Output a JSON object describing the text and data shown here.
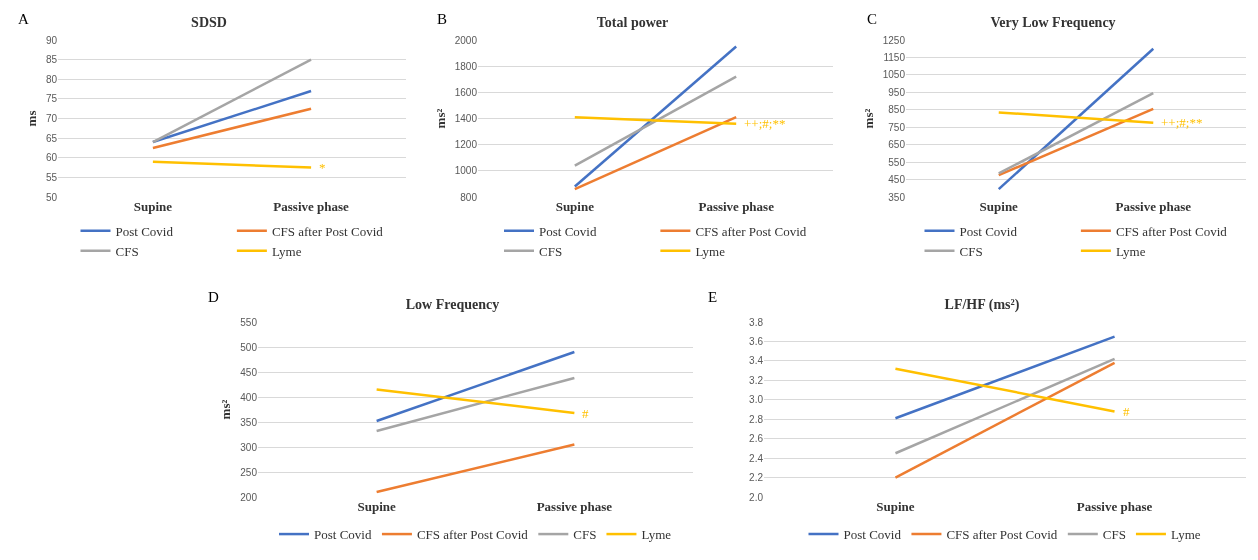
{
  "chart_data": [
    {
      "type": "line",
      "title": "SDSD",
      "ylabel": "ms",
      "categories": [
        "Supine",
        "Passive phase"
      ],
      "ylim": [
        50,
        90
      ],
      "yticks": [
        50,
        55,
        60,
        65,
        70,
        75,
        80,
        85,
        90
      ],
      "grid": "y",
      "legend": "bottom",
      "marker": "none",
      "line_style": "solid",
      "annotations": [
        "A",
        {
          "text": "*",
          "x": "Passive phase",
          "y": 57.5
        }
      ],
      "series": [
        {
          "name": "Post Covid",
          "color": "#4472c4",
          "values": [
            64,
            77
          ]
        },
        {
          "name": "CFS after Post Covid",
          "color": "#ed7d31",
          "values": [
            62.5,
            72.5
          ]
        },
        {
          "name": "CFS",
          "color": "#a5a5a5",
          "values": [
            64,
            85
          ]
        },
        {
          "name": "Lyme",
          "color": "#ffc000",
          "values": [
            59,
            57.5
          ]
        }
      ]
    },
    {
      "type": "line",
      "title": "Total power",
      "ylabel": "ms²",
      "categories": [
        "Supine",
        "Passive phase"
      ],
      "ylim": [
        800,
        2000
      ],
      "yticks": [
        800,
        1000,
        1200,
        1400,
        1600,
        1800,
        2000
      ],
      "grid": "y",
      "legend": "bottom",
      "marker": "none",
      "line_style": "solid",
      "annotations": [
        "B",
        {
          "text": "++;#;**",
          "x": "Passive phase",
          "y": 1360
        }
      ],
      "series": [
        {
          "name": "Post Covid",
          "color": "#4472c4",
          "values": [
            880,
            1950
          ]
        },
        {
          "name": "CFS after Post Covid",
          "color": "#ed7d31",
          "values": [
            860,
            1410
          ]
        },
        {
          "name": "CFS",
          "color": "#a5a5a5",
          "values": [
            1040,
            1720
          ]
        },
        {
          "name": "Lyme",
          "color": "#ffc000",
          "values": [
            1410,
            1360
          ]
        }
      ]
    },
    {
      "type": "line",
      "title": "Very Low Frequency",
      "ylabel": "ms²",
      "categories": [
        "Supine",
        "Passive phase"
      ],
      "ylim": [
        350,
        1250
      ],
      "yticks": [
        350,
        450,
        550,
        650,
        750,
        850,
        950,
        1050,
        1150,
        1250
      ],
      "grid": "y",
      "legend": "bottom",
      "marker": "none",
      "line_style": "solid",
      "annotations": [
        "C",
        {
          "text": "++;#;**",
          "x": "Passive phase",
          "y": 775
        }
      ],
      "series": [
        {
          "name": "Post Covid",
          "color": "#4472c4",
          "values": [
            395,
            1200
          ]
        },
        {
          "name": "CFS after Post Covid",
          "color": "#ed7d31",
          "values": [
            475,
            855
          ]
        },
        {
          "name": "CFS",
          "color": "#a5a5a5",
          "values": [
            485,
            945
          ]
        },
        {
          "name": "Lyme",
          "color": "#ffc000",
          "values": [
            835,
            775
          ]
        }
      ]
    },
    {
      "type": "line",
      "title": "Low Frequency",
      "ylabel": "ms²",
      "categories": [
        "Supine",
        "Passive phase"
      ],
      "ylim": [
        200,
        550
      ],
      "yticks": [
        200,
        250,
        300,
        350,
        400,
        450,
        500,
        550
      ],
      "grid": "y",
      "legend": "bottom",
      "marker": "none",
      "line_style": "solid",
      "annotations": [
        "D",
        {
          "text": "#",
          "x": "Passive phase",
          "y": 368
        }
      ],
      "series": [
        {
          "name": "Post Covid",
          "color": "#4472c4",
          "values": [
            352,
            490
          ]
        },
        {
          "name": "CFS after Post Covid",
          "color": "#ed7d31",
          "values": [
            210,
            305
          ]
        },
        {
          "name": "CFS",
          "color": "#a5a5a5",
          "values": [
            332,
            438
          ]
        },
        {
          "name": "Lyme",
          "color": "#ffc000",
          "values": [
            415,
            368
          ]
        }
      ]
    },
    {
      "type": "line",
      "title": "LF/HF (ms²)",
      "categories": [
        "Supine",
        "Passive phase"
      ],
      "ylim": [
        2.0,
        3.8
      ],
      "yticks": [
        {
          "value": 2.0,
          "label": "2.0"
        },
        2.2,
        2.4,
        2.6,
        2.8,
        {
          "value": 3.0,
          "label": "3.0"
        },
        3.2,
        3.4,
        3.6,
        3.8
      ],
      "grid": "y",
      "legend": "bottom",
      "marker": "none",
      "line_style": "solid",
      "annotations": [
        "E",
        {
          "text": "#",
          "x": "Passive phase",
          "y": 2.88
        }
      ],
      "series": [
        {
          "name": "Post Covid",
          "color": "#4472c4",
          "values": [
            2.81,
            3.65
          ]
        },
        {
          "name": "CFS after Post Covid",
          "color": "#ed7d31",
          "values": [
            2.2,
            3.38
          ]
        },
        {
          "name": "CFS",
          "color": "#a5a5a5",
          "values": [
            2.45,
            3.42
          ]
        },
        {
          "name": "Lyme",
          "color": "#ffc000",
          "values": [
            3.32,
            2.88
          ]
        }
      ]
    }
  ]
}
